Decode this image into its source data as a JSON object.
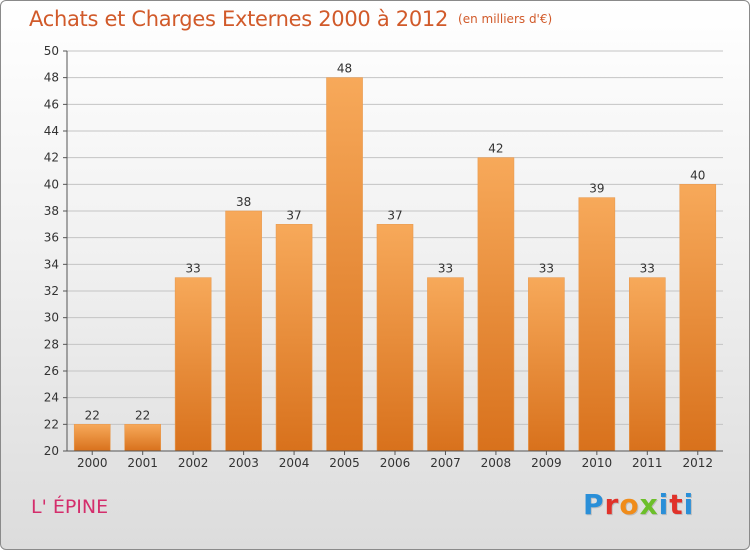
{
  "title": "Achats et Charges Externes 2000 à 2012",
  "unit": "(en milliers d'€)",
  "commune": "L' ÉPINE",
  "logo": {
    "letters": [
      "P",
      "r",
      "o",
      "x",
      "i",
      "t",
      "i"
    ]
  },
  "colors": {
    "bar_top": "#f7a95a",
    "bar_bottom": "#d8711c",
    "title": "#d15a2a",
    "commune": "#d42e6c"
  },
  "chart_data": {
    "type": "bar",
    "title": "Achats et Charges Externes 2000 à 2012",
    "categories": [
      "2000",
      "2001",
      "2002",
      "2003",
      "2004",
      "2005",
      "2006",
      "2007",
      "2008",
      "2009",
      "2010",
      "2011",
      "2012"
    ],
    "values": [
      22,
      22,
      33,
      38,
      37,
      48,
      37,
      33,
      42,
      33,
      39,
      33,
      40
    ],
    "ylim": [
      20,
      50
    ],
    "yticks": [
      20,
      22,
      24,
      26,
      28,
      30,
      32,
      34,
      36,
      38,
      40,
      42,
      44,
      46,
      48,
      50
    ],
    "grid": true,
    "xlabel": "",
    "ylabel": ""
  }
}
